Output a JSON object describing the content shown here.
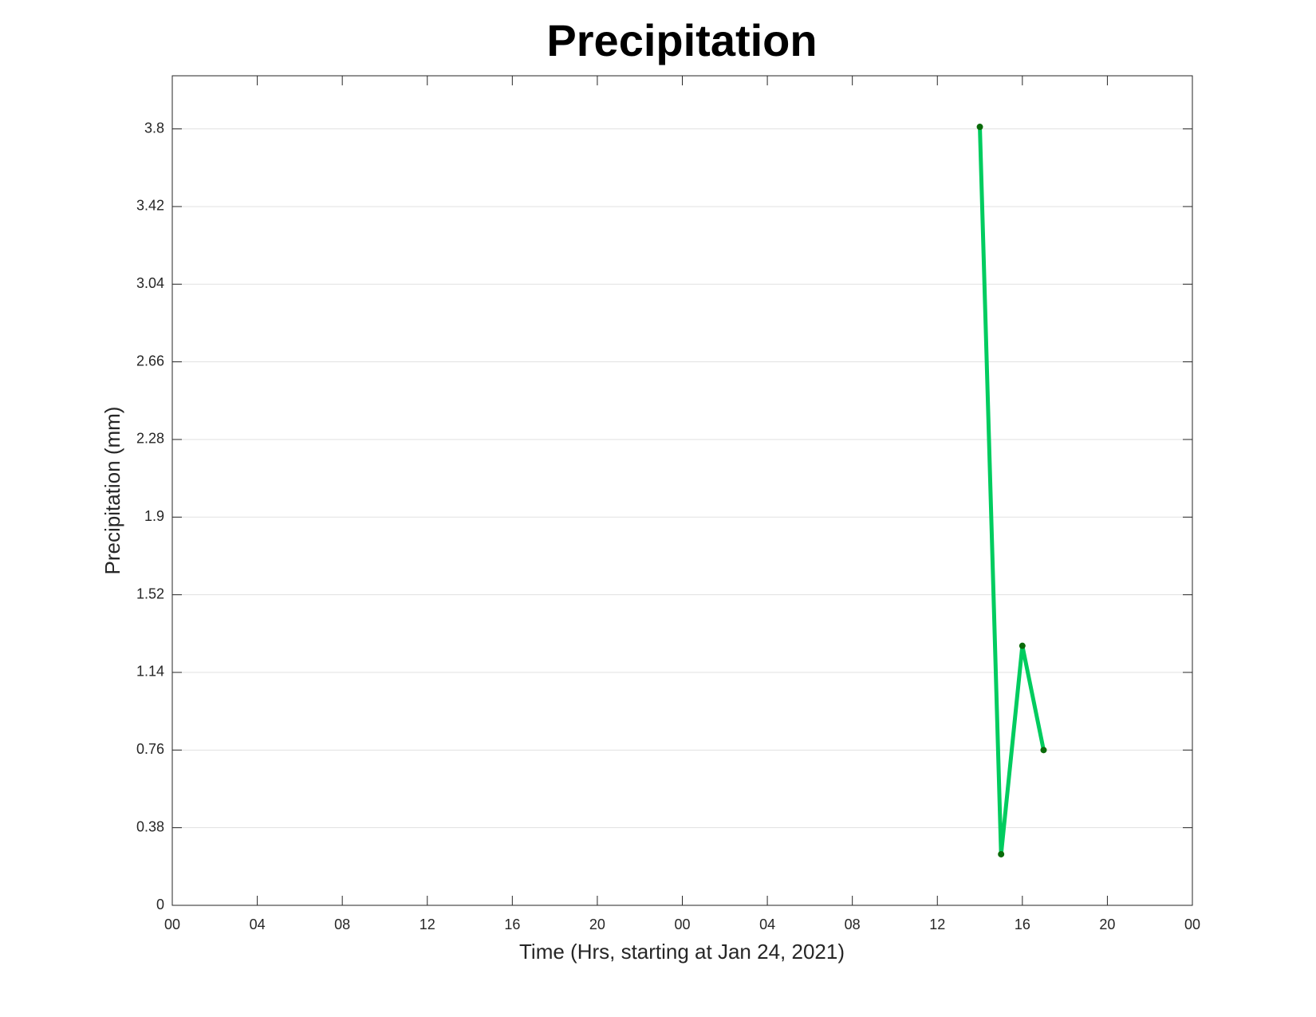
{
  "chart_data": {
    "type": "line",
    "title": "Precipitation",
    "x_label": "Time (Hrs, starting at Jan 24, 2021)",
    "y_label": "Precipitation (mm)",
    "x": [
      38,
      39,
      40,
      41
    ],
    "values": [
      3.81,
      0.25,
      1.27,
      0.76
    ],
    "color": "#00cc5f",
    "marker_color": "#0a6b0a",
    "xlim": [
      0,
      48
    ],
    "xticks": [
      {
        "value": 0,
        "label": "00"
      },
      {
        "value": 4,
        "label": "04"
      },
      {
        "value": 8,
        "label": "08"
      },
      {
        "value": 12,
        "label": "12"
      },
      {
        "value": 16,
        "label": "16"
      },
      {
        "value": 20,
        "label": "20"
      },
      {
        "value": 24,
        "label": "00"
      },
      {
        "value": 28,
        "label": "04"
      },
      {
        "value": 32,
        "label": "08"
      },
      {
        "value": 36,
        "label": "12"
      },
      {
        "value": 40,
        "label": "16"
      },
      {
        "value": 44,
        "label": "20"
      },
      {
        "value": 48,
        "label": "00"
      }
    ],
    "ylim": [
      0,
      4.06
    ],
    "yticks": [
      0,
      0.38,
      0.76,
      1.14,
      1.52,
      1.9,
      2.28,
      2.66,
      3.04,
      3.42,
      3.8
    ],
    "grid": true
  }
}
